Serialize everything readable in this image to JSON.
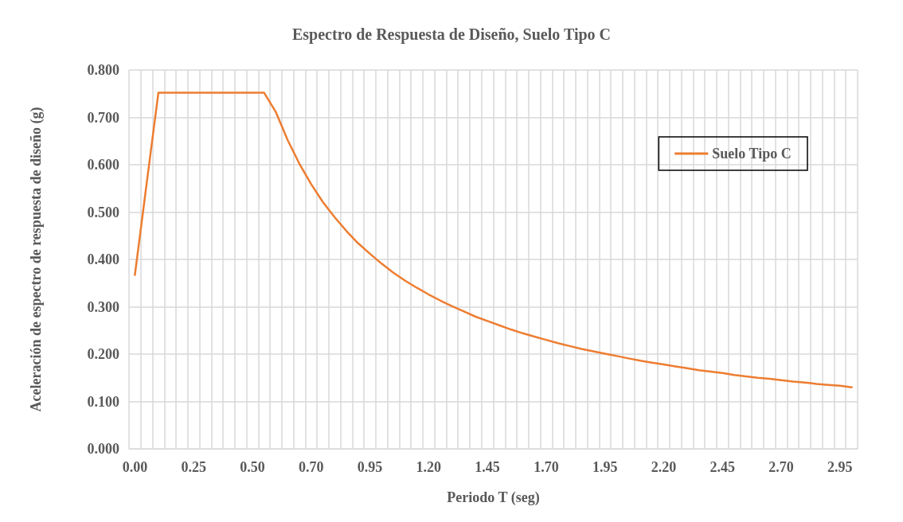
{
  "chart_data": {
    "type": "line",
    "title": "Espectro de Respuesta de Diseño, Suelo Tipo C",
    "xlabel": "Periodo T (seg)",
    "ylabel": "Aceleración de espectro de respuesta de diseño (g)",
    "categories": [
      "0.00",
      null,
      null,
      null,
      null,
      "0.25",
      null,
      null,
      null,
      null,
      "0.50",
      null,
      null,
      null,
      null,
      "0.70",
      null,
      null,
      null,
      null,
      "0.95",
      null,
      null,
      null,
      null,
      "1.20",
      null,
      null,
      null,
      null,
      "1.45",
      null,
      null,
      null,
      null,
      "1.70",
      null,
      null,
      null,
      null,
      "1.95",
      null,
      null,
      null,
      null,
      "2.20",
      null,
      null,
      null,
      null,
      "2.45",
      null,
      null,
      null,
      null,
      "2.70",
      null,
      null,
      null,
      null,
      "2.95",
      null
    ],
    "series": [
      {
        "name": "Suelo Tipo C",
        "color": "#ed7d31",
        "values": [
          0.367,
          0.56,
          0.752,
          0.752,
          0.752,
          0.752,
          0.752,
          0.752,
          0.752,
          0.752,
          0.752,
          0.752,
          0.711,
          0.652,
          0.602,
          0.559,
          0.521,
          0.489,
          0.46,
          0.434,
          0.412,
          0.391,
          0.372,
          0.355,
          0.34,
          0.326,
          0.313,
          0.301,
          0.29,
          0.279,
          0.27,
          0.261,
          0.252,
          0.244,
          0.237,
          0.23,
          0.223,
          0.217,
          0.211,
          0.206,
          0.201,
          0.196,
          0.191,
          0.186,
          0.182,
          0.178,
          0.174,
          0.17,
          0.166,
          0.163,
          0.16,
          0.156,
          0.153,
          0.15,
          0.148,
          0.145,
          0.142,
          0.14,
          0.137,
          0.135,
          0.133,
          0.13
        ]
      }
    ],
    "ylim": [
      0,
      0.8
    ],
    "yticks": [
      {
        "value": 0,
        "label": "0.000"
      },
      {
        "value": 0.1,
        "label": "0.100"
      },
      {
        "value": 0.2,
        "label": "0.200"
      },
      {
        "value": 0.3,
        "label": "0.300"
      },
      {
        "value": 0.4,
        "label": "0.400"
      },
      {
        "value": 0.5,
        "label": "0.500"
      },
      {
        "value": 0.6,
        "label": "0.600"
      },
      {
        "value": 0.7,
        "label": "0.700"
      },
      {
        "value": 0.8,
        "label": "0.800"
      }
    ],
    "grid": true,
    "legend": "top right",
    "marker": "none",
    "line_style": "solid"
  }
}
